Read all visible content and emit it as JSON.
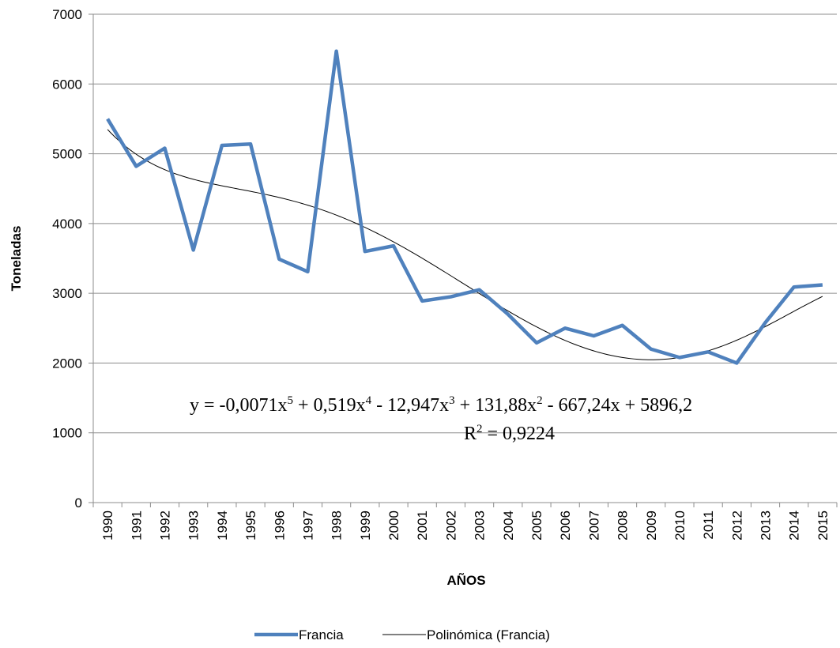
{
  "chart_data": {
    "type": "line",
    "xlabel": "AÑOS",
    "ylabel": "Toneladas",
    "ylim": [
      0,
      7000
    ],
    "y_ticks": [
      0,
      1000,
      2000,
      3000,
      4000,
      5000,
      6000,
      7000
    ],
    "grid": "horizontal",
    "legend_position": "bottom",
    "categories": [
      "1990",
      "1991",
      "1992",
      "1993",
      "1994",
      "1995",
      "1996",
      "1997",
      "1998",
      "1999",
      "2000",
      "2001",
      "2002",
      "2003",
      "2004",
      "2005",
      "2006",
      "2007",
      "2008",
      "2009",
      "2010",
      "2011",
      "2012",
      "2013",
      "2014",
      "2015"
    ],
    "series": [
      {
        "name": "Francia",
        "color": "#4F81BD",
        "values": [
          5500,
          4820,
          5080,
          3620,
          5120,
          5140,
          3490,
          3310,
          6470,
          3600,
          3680,
          2890,
          2950,
          3050,
          2700,
          2290,
          2500,
          2390,
          2540,
          2200,
          2080,
          2160,
          2000,
          2580,
          3090,
          3120
        ]
      }
    ],
    "trendline": {
      "name": "Polinómica (Francia)",
      "type": "polynomial",
      "order": 5,
      "color": "#000000",
      "coefficients": [
        -0.0071,
        0.519,
        -12.947,
        131.88,
        -667.24,
        5896.2
      ],
      "equation_text": {
        "y": "y = -0,0071x",
        "p5": "5",
        "t4": " + 0,519x",
        "p4": "4",
        "t3": " - 12,947x",
        "p3": "3",
        "t2": " + 131,88x",
        "p2": "2",
        "t1": " - 667,24x + 5896,2"
      },
      "r2_text": {
        "label": "R",
        "sup": "2",
        "value": " = 0,9224"
      }
    }
  }
}
